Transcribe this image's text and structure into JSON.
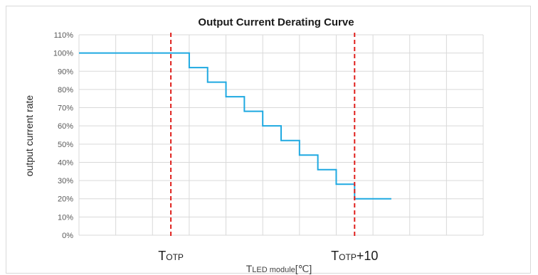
{
  "chart_data": {
    "type": "line",
    "title": "Output Current Derating Curve",
    "ylabel": "output current rate",
    "xlabel": {
      "main": "T",
      "sub": "LED module",
      "unit": "[℃]"
    },
    "ylim": [
      0,
      110
    ],
    "yticks": [
      "0%",
      "10%",
      "20%",
      "30%",
      "40%",
      "50%",
      "60%",
      "70%",
      "80%",
      "90%",
      "100%",
      "110%"
    ],
    "x_gridlines": 11,
    "grid": true,
    "series": [
      {
        "step_x": [
          0,
          3,
          3.5,
          4,
          4.5,
          5,
          5.5,
          6,
          6.5,
          7,
          7.5,
          8.5
        ],
        "values": [
          100,
          92,
          84,
          76,
          68,
          60,
          52,
          44,
          36,
          28,
          20,
          20
        ],
        "color": "#1fa9e1"
      }
    ],
    "markers": [
      {
        "x": 2.5,
        "label_main": "T",
        "label_sub": "OTP",
        "label_suffix": "",
        "color": "#e0201d"
      },
      {
        "x": 7.5,
        "label_main": "T",
        "label_sub": "OTP",
        "label_suffix": "+10",
        "color": "#e0201d"
      }
    ],
    "colors": {
      "grid": "#d9d9d9",
      "line": "#1fa9e1",
      "marker": "#e0201d"
    }
  }
}
